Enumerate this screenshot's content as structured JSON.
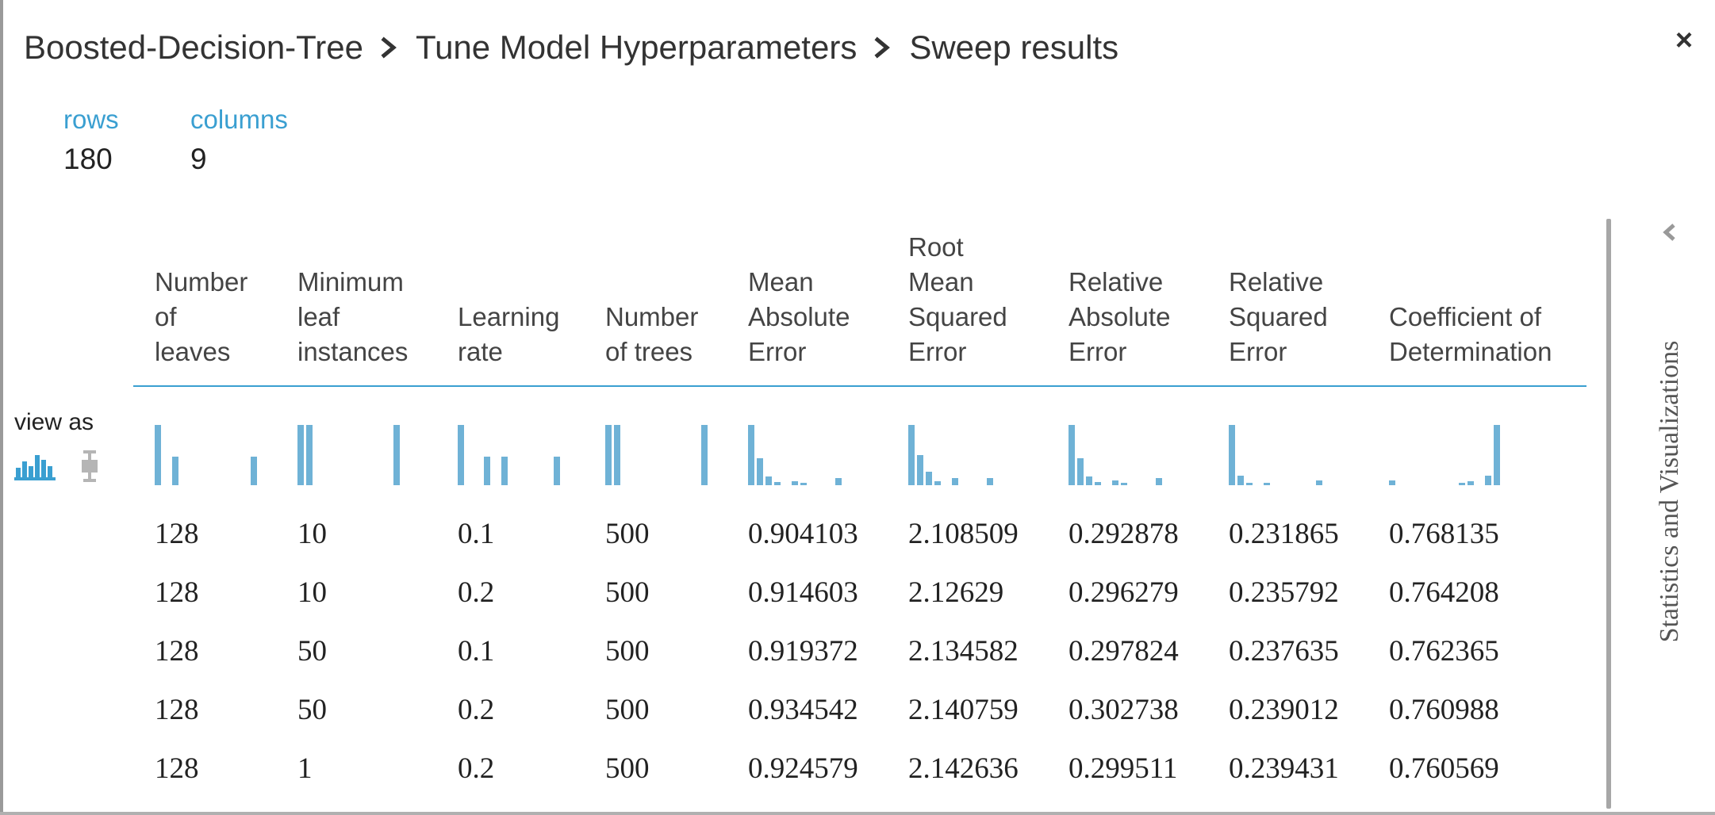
{
  "breadcrumb": [
    "Boosted-Decision-Tree",
    "Tune Model Hyperparameters",
    "Sweep results"
  ],
  "close_icon": "×",
  "stats": [
    {
      "label": "rows",
      "value": "180"
    },
    {
      "label": "columns",
      "value": "9"
    }
  ],
  "view_as_label": "view as",
  "view_icons": [
    "histogram-icon",
    "boxplot-icon"
  ],
  "columns": [
    [
      "Number",
      "of",
      "leaves"
    ],
    [
      "Minimum",
      "leaf",
      "instances"
    ],
    [
      "Learning",
      "rate"
    ],
    [
      "Number",
      "of trees"
    ],
    [
      "Mean",
      "Absolute",
      "Error"
    ],
    [
      "Root",
      "Mean",
      "Squared",
      "Error"
    ],
    [
      "Relative",
      "Absolute",
      "Error"
    ],
    [
      "Relative",
      "Squared",
      "Error"
    ],
    [
      "Coefficient of",
      "Determination"
    ]
  ],
  "histograms": [
    [
      1,
      0,
      0.48,
      0,
      0,
      0,
      0,
      0,
      0,
      0,
      0,
      0.48
    ],
    [
      1,
      1,
      0,
      0,
      0,
      0,
      0,
      0,
      0,
      0,
      0,
      1
    ],
    [
      1,
      0,
      0,
      0.48,
      0,
      0.48,
      0,
      0,
      0,
      0,
      0,
      0.48
    ],
    [
      1,
      1,
      0,
      0,
      0,
      0,
      0,
      0,
      0,
      0,
      0,
      1
    ],
    [
      1,
      0.45,
      0.15,
      0.05,
      0,
      0.06,
      0.04,
      0,
      0,
      0,
      0.12
    ],
    [
      1,
      0.5,
      0.22,
      0.06,
      0,
      0.12,
      0,
      0,
      0,
      0.12
    ],
    [
      1,
      0.45,
      0.15,
      0.05,
      0,
      0.08,
      0.04,
      0,
      0,
      0,
      0.12
    ],
    [
      1,
      0.16,
      0.04,
      0,
      0.04,
      0,
      0,
      0,
      0,
      0,
      0.08
    ],
    [
      0.08,
      0,
      0,
      0,
      0,
      0,
      0,
      0,
      0.04,
      0.06,
      0,
      0.16,
      1
    ]
  ],
  "rows": [
    [
      "128",
      "10",
      "0.1",
      "500",
      "0.904103",
      "2.108509",
      "0.292878",
      "0.231865",
      "0.768135"
    ],
    [
      "128",
      "10",
      "0.2",
      "500",
      "0.914603",
      "2.12629",
      "0.296279",
      "0.235792",
      "0.764208"
    ],
    [
      "128",
      "50",
      "0.1",
      "500",
      "0.919372",
      "2.134582",
      "0.297824",
      "0.237635",
      "0.762365"
    ],
    [
      "128",
      "50",
      "0.2",
      "500",
      "0.934542",
      "2.140759",
      "0.302738",
      "0.239012",
      "0.760988"
    ],
    [
      "128",
      "1",
      "0.2",
      "500",
      "0.924579",
      "2.142636",
      "0.299511",
      "0.239431",
      "0.760569"
    ]
  ],
  "side_panel_title": "Statistics and Visualizations",
  "colors": {
    "accent": "#3a9fd1",
    "bar": "#6fb2d6",
    "text": "#333333"
  }
}
